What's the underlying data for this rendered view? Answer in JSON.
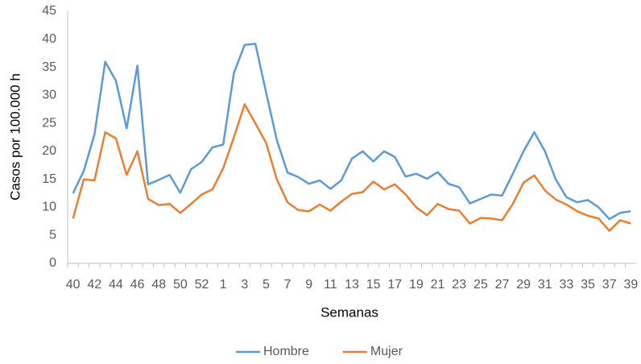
{
  "chart_data": {
    "type": "line",
    "x_label": "Semanas",
    "y_label": "Casos por 100.000 h",
    "categories": [
      "40",
      null,
      "42",
      null,
      "44",
      null,
      "46",
      null,
      "48",
      null,
      "50",
      null,
      "52",
      null,
      "1",
      null,
      "3",
      null,
      "5",
      null,
      "7",
      null,
      "9",
      null,
      "11",
      null,
      "13",
      null,
      "15",
      null,
      "17",
      null,
      "19",
      null,
      "21",
      null,
      "23",
      null,
      "25",
      null,
      "27",
      null,
      "29",
      null,
      "31",
      null,
      "33",
      null,
      "35",
      null,
      "37",
      null,
      "39"
    ],
    "series": [
      {
        "name": "Hombre",
        "color": "#5b9bd5",
        "values": [
          12.5,
          16.5,
          23,
          36,
          32.6,
          24.1,
          35.3,
          14.1,
          14.9,
          15.8,
          12.6,
          16.8,
          18.1,
          20.7,
          21.2,
          34,
          39,
          39.2,
          30.5,
          22,
          16.2,
          15.4,
          14.2,
          14.8,
          13.3,
          14.8,
          18.7,
          20,
          18.2,
          20,
          19,
          15.5,
          16,
          15.1,
          16.3,
          14.2,
          13.6,
          10.7,
          11.5,
          12.3,
          12.1,
          16,
          20,
          23.4,
          20,
          15,
          11.8,
          10.9,
          11.3,
          10,
          7.9,
          9,
          9.3
        ]
      },
      {
        "name": "Mujer",
        "color": "#ed7d31",
        "values": [
          8,
          15,
          14.8,
          23.4,
          22.3,
          15.8,
          20,
          11.5,
          10.4,
          10.6,
          9,
          10.6,
          12.3,
          13.2,
          17,
          22.5,
          28.4,
          25,
          21.5,
          15,
          10.9,
          9.5,
          9.3,
          10.5,
          9.4,
          11,
          12.4,
          12.7,
          14.6,
          13.2,
          14.1,
          12.3,
          10,
          8.6,
          10.6,
          9.7,
          9.4,
          7.1,
          8.1,
          8,
          7.7,
          10.6,
          14.4,
          15.7,
          13,
          11.4,
          10.5,
          9.3,
          8.5,
          8,
          5.8,
          7.7,
          7.1
        ]
      }
    ],
    "ylim": [
      0,
      45
    ],
    "yticks": [
      0,
      5,
      10,
      15,
      20,
      25,
      30,
      35,
      40,
      45
    ],
    "grid": false,
    "legend": "bottom"
  }
}
